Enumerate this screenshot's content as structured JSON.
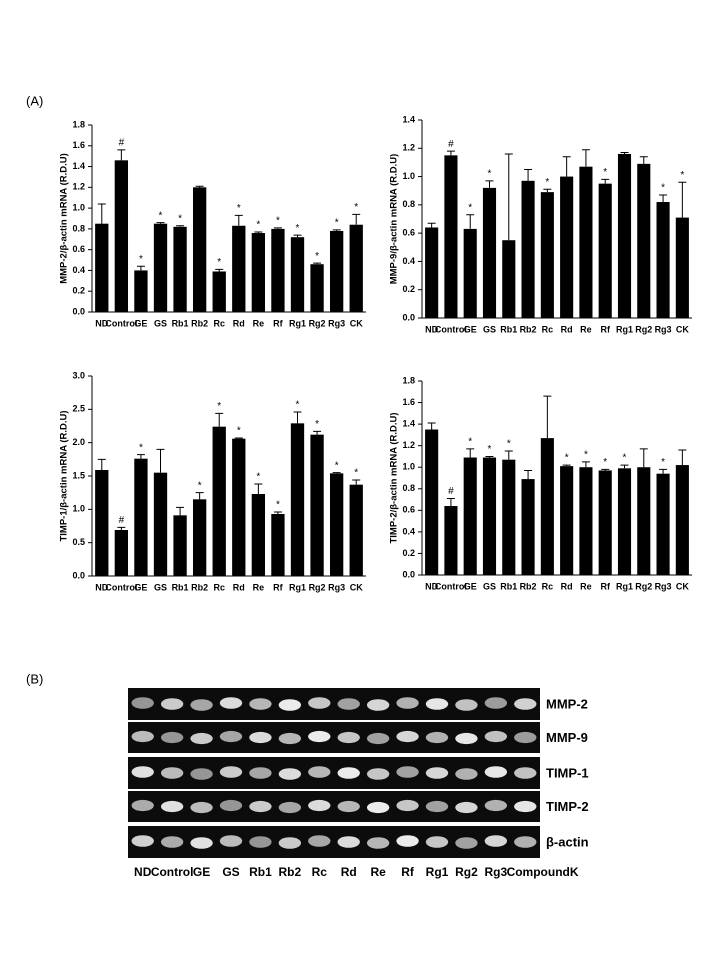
{
  "panel_labels": [
    "(A)",
    "(B)"
  ],
  "chart_data": [
    {
      "type": "bar",
      "y_label": "MMP-2/β-actin mRNA (R.D.U)",
      "color": "#000000",
      "categories": [
        "ND",
        "Control",
        "GE",
        "GS",
        "Rb1",
        "Rb2",
        "Rc",
        "Rd",
        "Re",
        "Rf",
        "Rg1",
        "Rg2",
        "Rg3",
        "CK"
      ],
      "values": [
        0.85,
        1.46,
        0.4,
        0.85,
        0.82,
        1.2,
        0.39,
        0.83,
        0.76,
        0.8,
        0.72,
        0.46,
        0.78,
        0.84
      ],
      "errors": [
        0.19,
        0.1,
        0.04,
        0.01,
        0.01,
        0.01,
        0.02,
        0.1,
        0.01,
        0.01,
        0.02,
        0.01,
        0.01,
        0.1
      ],
      "annotations": [
        null,
        "#",
        "*",
        "*",
        "*",
        null,
        "*",
        "*",
        "*",
        "*",
        "*",
        "*",
        "*",
        "*"
      ],
      "ylim": [
        0,
        1.8
      ],
      "yticks": [
        {
          "value": 0,
          "label": "0.0"
        },
        0.2,
        0.4,
        0.6,
        0.8,
        {
          "value": 1,
          "label": "1.0"
        },
        1.2,
        1.4,
        1.6,
        1.8
      ]
    },
    {
      "type": "bar",
      "y_label": "MMP-9/β-actin mRNA (R.D.U)",
      "color": "#000000",
      "categories": [
        "ND",
        "Control",
        "GE",
        "GS",
        "Rb1",
        "Rb2",
        "Rc",
        "Rd",
        "Re",
        "Rf",
        "Rg1",
        "Rg2",
        "Rg3",
        "CK"
      ],
      "values": [
        0.64,
        1.15,
        0.63,
        0.92,
        0.55,
        0.97,
        0.89,
        1.0,
        1.07,
        0.95,
        1.16,
        1.09,
        0.82,
        0.71
      ],
      "errors": [
        0.03,
        0.03,
        0.1,
        0.05,
        0.61,
        0.08,
        0.02,
        0.14,
        0.12,
        0.03,
        0.01,
        0.05,
        0.05,
        0.25
      ],
      "annotations": [
        null,
        "#",
        "*",
        "*",
        null,
        null,
        "*",
        null,
        null,
        "*",
        null,
        null,
        "*",
        "*"
      ],
      "ylim": [
        0,
        1.4
      ],
      "yticks": [
        {
          "value": 0,
          "label": "0.0"
        },
        0.2,
        0.4,
        0.6,
        0.8,
        {
          "value": 1,
          "label": "1.0"
        },
        1.2,
        1.4
      ]
    },
    {
      "type": "bar",
      "y_label": "TIMP-1/β-actin mRNA (R.D.U)",
      "color": "#000000",
      "categories": [
        "ND",
        "Control",
        "GE",
        "GS",
        "Rb1",
        "Rb2",
        "Rc",
        "Rd",
        "Re",
        "Rf",
        "Rg1",
        "Rg2",
        "Rg3",
        "CK"
      ],
      "values": [
        1.59,
        0.69,
        1.76,
        1.55,
        0.91,
        1.15,
        2.24,
        2.06,
        1.23,
        0.93,
        2.29,
        2.12,
        1.54,
        1.37
      ],
      "errors": [
        0.16,
        0.04,
        0.06,
        0.35,
        0.12,
        0.1,
        0.2,
        0.01,
        0.15,
        0.03,
        0.17,
        0.05,
        0.01,
        0.07
      ],
      "annotations": [
        null,
        "#",
        "*",
        null,
        null,
        "*",
        "*",
        "*",
        "*",
        "*",
        "*",
        "*",
        "*",
        "*"
      ],
      "ylim": [
        0,
        3
      ],
      "yticks": [
        {
          "value": 0,
          "label": "0.0"
        },
        0.5,
        {
          "value": 1,
          "label": "1.0"
        },
        1.5,
        {
          "value": 2,
          "label": "2.0"
        },
        2.5,
        {
          "value": 3,
          "label": "3.0"
        }
      ]
    },
    {
      "type": "bar",
      "y_label": "TIMP-2/β-actin mRNA (R.D.U)",
      "color": "#000000",
      "categories": [
        "ND",
        "Control",
        "GE",
        "GS",
        "Rb1",
        "Rb2",
        "Rc",
        "Rd",
        "Re",
        "Rf",
        "Rg1",
        "Rg2",
        "Rg3",
        "CK"
      ],
      "values": [
        1.35,
        0.64,
        1.09,
        1.09,
        1.07,
        0.89,
        1.27,
        1.01,
        1.0,
        0.97,
        0.99,
        1.0,
        0.94,
        1.02
      ],
      "errors": [
        0.06,
        0.07,
        0.08,
        0.01,
        0.08,
        0.08,
        0.39,
        0.01,
        0.05,
        0.01,
        0.03,
        0.17,
        0.04,
        0.14
      ],
      "annotations": [
        null,
        "#",
        "*",
        "*",
        "*",
        null,
        null,
        "*",
        "*",
        "*",
        "*",
        null,
        "*",
        null
      ],
      "ylim": [
        0,
        1.8
      ],
      "yticks": [
        {
          "value": 0,
          "label": "0.0"
        },
        0.2,
        0.4,
        0.6,
        0.8,
        {
          "value": 1,
          "label": "1.0"
        },
        1.2,
        1.4,
        1.6,
        1.8
      ]
    }
  ],
  "gel": {
    "rows": [
      "MMP-2",
      "MMP-9",
      "TIMP-1",
      "TIMP-2",
      "β-actin"
    ],
    "lanes": [
      "ND",
      "Control",
      "GE",
      "GS",
      "Rb1",
      "Rb2",
      "Rc",
      "Rd",
      "Re",
      "Rf",
      "Rg1",
      "Rg2",
      "Rg3",
      "CompoundK"
    ]
  }
}
